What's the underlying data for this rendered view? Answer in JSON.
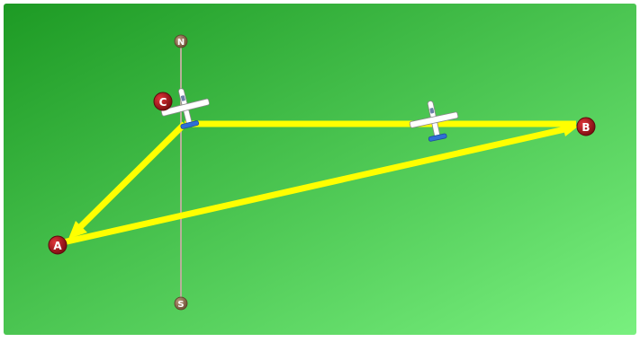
{
  "compass": {
    "north": "N",
    "south": "S"
  },
  "points": {
    "a": "A",
    "b": "B",
    "c": "C"
  },
  "colors": {
    "field_start": "#1d9a24",
    "field_end": "#79f07f",
    "path": "#ffff00",
    "marker": "#b3171b",
    "compass_marker": "#9a7a58",
    "compass_line": "#b8b09a",
    "plane_body": "#ffffff",
    "plane_tail": "#2f6fd6"
  },
  "icons": {
    "plane": "airplane-icon"
  }
}
